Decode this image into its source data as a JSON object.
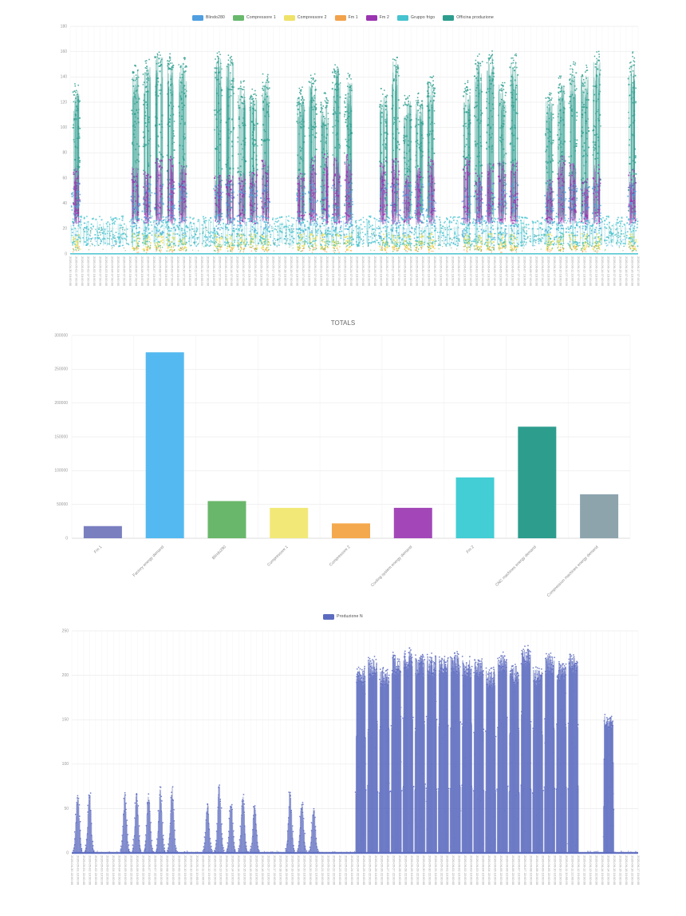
{
  "page": {
    "background": "#ffffff"
  },
  "chart_data": [
    {
      "type": "scatter",
      "title": "",
      "legend_position": "top",
      "y_max": 180,
      "y_ticks": [
        0,
        20,
        40,
        60,
        80,
        100,
        120,
        140,
        160,
        180
      ],
      "n_days": 48,
      "series": [
        {
          "name": "Blindo280",
          "color": "#4f9fe0"
        },
        {
          "name": "Compressore 1",
          "color": "#68b96c"
        },
        {
          "name": "Compressore 2",
          "color": "#efe269"
        },
        {
          "name": "Fm 1",
          "color": "#f2a24b"
        },
        {
          "name": "Fm 2",
          "color": "#9a34b0"
        },
        {
          "name": "Gruppo frigo",
          "color": "#45c3cf"
        },
        {
          "name": "Officina produzione",
          "color": "#2d9d8e"
        }
      ],
      "active_days": [
        0,
        5,
        6,
        7,
        8,
        9,
        12,
        13,
        14,
        15,
        16,
        19,
        20,
        21,
        22,
        23,
        26,
        27,
        28,
        29,
        30,
        33,
        34,
        35,
        36,
        37,
        40,
        41,
        42,
        43,
        44,
        47
      ],
      "gen": {
        "officina": {
          "work": [
            120,
            158
          ],
          "off": [
            6,
            22
          ]
        },
        "fm2": {
          "work": [
            58,
            82
          ]
        },
        "blindo": {
          "work": [
            12,
            56
          ],
          "off": [
            6,
            16
          ]
        },
        "gruppo": {
          "all": [
            6,
            30
          ]
        },
        "comp2": {
          "work": [
            3,
            16
          ]
        },
        "comp1": {
          "work": [
            2,
            10
          ]
        },
        "fm1": {
          "work": [
            1,
            6
          ]
        }
      },
      "x_labels": [
        "2020-04-30 19:00:00",
        "2020-05-01 07:00:00",
        "2020-05-01 19:00:00",
        "2020-05-02 07:00:00",
        "2020-05-02 19:00:00",
        "2020-05-03 07:00:00",
        "2020-05-03 19:00:00",
        "2020-05-04 07:00:00",
        "2020-05-04 19:00:00",
        "2020-05-05 07:00:00",
        "2020-05-05 19:00:00",
        "2020-05-06 07:00:00",
        "2020-05-06 19:00:00",
        "2020-05-07 07:00:00",
        "2020-05-07 19:00:00",
        "2020-05-08 07:00:00",
        "2020-05-08 19:00:00",
        "2020-05-09 07:00:00",
        "2020-05-09 19:00:00",
        "2020-05-10 07:00:00",
        "2020-05-10 19:00:00",
        "2020-05-11 07:00:00",
        "2020-05-11 19:00:00",
        "2020-05-12 07:00:00",
        "2020-05-12 19:00:00",
        "2020-05-13 07:00:00",
        "2020-05-13 19:00:00",
        "2020-05-14 07:00:00",
        "2020-05-14 19:00:00",
        "2020-05-15 07:00:00",
        "2020-05-15 19:00:00",
        "2020-05-16 07:00:00",
        "2020-05-16 19:00:00",
        "2020-05-17 07:00:00",
        "2020-05-17 19:00:00",
        "2020-05-18 07:00:00",
        "2020-05-18 19:00:00",
        "2020-05-19 07:00:00",
        "2020-05-19 19:00:00",
        "2020-05-20 07:00:00",
        "2020-05-20 19:00:00",
        "2020-05-21 07:00:00",
        "2020-05-21 19:00:00",
        "2020-05-22 07:00:00",
        "2020-05-22 19:00:00",
        "2020-05-23 07:00:00",
        "2020-05-23 19:00:00",
        "2020-05-24 07:00:00",
        "2020-05-24 19:00:00",
        "2020-05-25 07:00:00",
        "2020-05-25 19:00:00",
        "2020-05-26 07:00:00",
        "2020-05-26 19:00:00",
        "2020-05-27 07:00:00",
        "2020-05-27 19:00:00",
        "2020-05-28 07:00:00",
        "2020-05-28 19:00:00",
        "2020-05-29 07:00:00",
        "2020-05-29 19:00:00",
        "2020-05-30 07:00:00",
        "2020-05-30 19:00:00",
        "2020-05-31 07:00:00",
        "2020-05-31 19:00:00",
        "2020-06-01 07:00:00",
        "2020-06-01 19:00:00",
        "2020-06-02 07:00:00",
        "2020-06-02 19:00:00",
        "2020-06-03 07:00:00",
        "2020-06-03 19:00:00",
        "2020-06-04 07:00:00",
        "2020-06-04 19:00:00",
        "2020-06-05 07:00:00",
        "2020-06-05 19:00:00",
        "2020-06-06 07:00:00",
        "2020-06-06 19:00:00",
        "2020-06-07 07:00:00",
        "2020-06-07 19:00:00",
        "2020-06-08 07:00:00",
        "2020-06-08 19:00:00",
        "2020-06-09 07:00:00",
        "2020-06-09 19:00:00",
        "2020-06-10 07:00:00",
        "2020-06-10 19:00:00",
        "2020-06-11 07:00:00",
        "2020-06-11 19:00:00",
        "2020-06-12 07:00:00",
        "2020-06-12 19:00:00",
        "2020-06-13 07:00:00",
        "2020-06-13 19:00:00",
        "2020-06-14 07:00:00",
        "2020-06-14 19:00:00",
        "2020-06-15 07:00:00",
        "2020-06-15 19:00:00",
        "2020-06-16 07:00:00",
        "2020-06-16 19:00:00",
        "2020-06-17 07:00:00"
      ]
    },
    {
      "type": "bar",
      "title": "TOTALS",
      "y_max": 300000,
      "y_ticks": [
        0,
        50000,
        100000,
        150000,
        200000,
        250000,
        300000
      ],
      "categories": [
        "Fm 1",
        "Factory energy demand",
        "Blindo280",
        "Compressore 1",
        "Compressore 2",
        "Cooling system energy demand",
        "Fm 2",
        "CNC machines energy demand",
        "Compression machines energy demand"
      ],
      "values": [
        18000,
        275000,
        55000,
        45000,
        22000,
        45000,
        90000,
        165000,
        65000
      ],
      "colors": [
        "#7a7fc0",
        "#54b9f0",
        "#69b76b",
        "#f2e878",
        "#f5a94e",
        "#a347b8",
        "#43cdd4",
        "#2d9d8e",
        "#8da4ad"
      ]
    },
    {
      "type": "scatter",
      "title": "",
      "legend_position": "top",
      "y_max": 250,
      "y_ticks": [
        0,
        50,
        100,
        150,
        200,
        250
      ],
      "n_days": 48,
      "series": [
        {
          "name": "Produzione N",
          "color": "#5c6bc0"
        }
      ],
      "phases": [
        {
          "from": 0,
          "to": 20,
          "peak": [
            50,
            75
          ],
          "weekend_off": true
        },
        {
          "from": 21,
          "to": 23,
          "peak": [
            0,
            5
          ]
        },
        {
          "from": 24,
          "to": 42,
          "peak": [
            205,
            232
          ]
        },
        {
          "from": 43,
          "to": 44,
          "peak": [
            0,
            4
          ]
        },
        {
          "from": 45,
          "to": 45,
          "peak": [
            150,
            165
          ]
        },
        {
          "from": 46,
          "to": 47,
          "peak": [
            0,
            4
          ]
        }
      ],
      "x_labels": [
        "2020-04-30 22:00:00",
        "2020-05-01 10:00:00",
        "2020-05-01 22:00:00",
        "2020-05-02 10:00:00",
        "2020-05-02 22:00:00",
        "2020-05-03 10:00:00",
        "2020-05-03 22:00:00",
        "2020-05-04 10:00:00",
        "2020-05-04 22:00:00",
        "2020-05-05 10:00:00",
        "2020-05-05 22:00:00",
        "2020-05-06 10:00:00",
        "2020-05-06 22:00:00",
        "2020-05-07 10:00:00",
        "2020-05-07 22:00:00",
        "2020-05-08 10:00:00",
        "2020-05-08 22:00:00",
        "2020-05-09 10:00:00",
        "2020-05-09 22:00:00",
        "2020-05-10 10:00:00",
        "2020-05-10 22:00:00",
        "2020-05-11 10:00:00",
        "2020-05-11 22:00:00",
        "2020-05-12 10:00:00",
        "2020-05-12 22:00:00",
        "2020-05-13 10:00:00",
        "2020-05-13 22:00:00",
        "2020-05-14 10:00:00",
        "2020-05-14 22:00:00",
        "2020-05-15 10:00:00",
        "2020-05-15 22:00:00",
        "2020-05-16 10:00:00",
        "2020-05-16 22:00:00",
        "2020-05-17 10:00:00",
        "2020-05-17 22:00:00",
        "2020-05-18 10:00:00",
        "2020-05-18 22:00:00",
        "2020-05-19 10:00:00",
        "2020-05-19 22:00:00",
        "2020-05-20 10:00:00",
        "2020-05-20 22:00:00",
        "2020-05-21 10:00:00",
        "2020-05-21 22:00:00",
        "2020-05-22 10:00:00",
        "2020-05-22 22:00:00",
        "2020-05-23 10:00:00",
        "2020-05-23 22:00:00",
        "2020-05-24 10:00:00",
        "2020-05-24 22:00:00",
        "2020-05-25 10:00:00",
        "2020-05-25 22:00:00",
        "2020-05-26 10:00:00",
        "2020-05-26 22:00:00",
        "2020-05-27 10:00:00",
        "2020-05-27 22:00:00",
        "2020-05-28 10:00:00",
        "2020-05-28 22:00:00",
        "2020-05-29 10:00:00",
        "2020-05-29 22:00:00",
        "2020-05-30 10:00:00",
        "2020-05-30 22:00:00",
        "2020-05-31 10:00:00",
        "2020-05-31 22:00:00",
        "2020-06-01 10:00:00",
        "2020-06-01 22:00:00",
        "2020-06-02 10:00:00",
        "2020-06-02 22:00:00",
        "2020-06-03 10:00:00",
        "2020-06-03 22:00:00",
        "2020-06-04 10:00:00",
        "2020-06-04 22:00:00",
        "2020-06-05 10:00:00",
        "2020-06-05 22:00:00",
        "2020-06-06 10:00:00",
        "2020-06-06 22:00:00",
        "2020-06-07 10:00:00",
        "2020-06-07 22:00:00",
        "2020-06-08 10:00:00",
        "2020-06-08 22:00:00",
        "2020-06-09 10:00:00",
        "2020-06-09 22:00:00",
        "2020-06-10 10:00:00",
        "2020-06-10 22:00:00",
        "2020-06-11 10:00:00",
        "2020-06-11 22:00:00",
        "2020-06-12 10:00:00",
        "2020-06-12 22:00:00",
        "2020-06-13 10:00:00",
        "2020-06-13 22:00:00",
        "2020-06-14 10:00:00",
        "2020-06-14 22:00:00",
        "2020-06-15 10:00:00",
        "2020-06-15 22:00:00",
        "2020-06-16 10:00:00",
        "2020-06-16 22:00:00",
        "2020-06-17 10:00:00"
      ]
    }
  ]
}
